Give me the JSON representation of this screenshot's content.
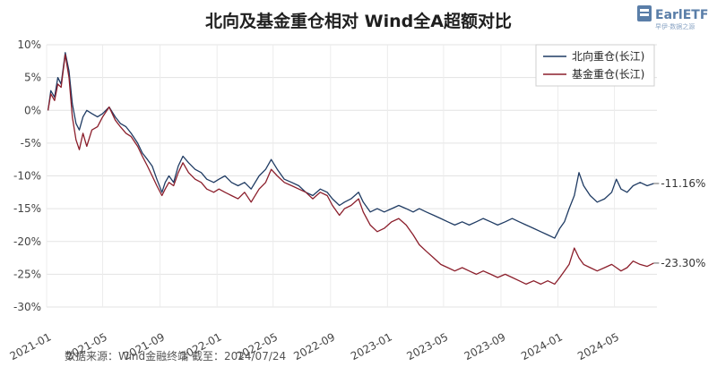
{
  "chart_data": {
    "type": "line",
    "title": "北向及基金重仓相对 Wind全A超额对比",
    "source": "数据来源：Wind金融终端 截至：2024/07/24",
    "xlabel": "",
    "ylabel": "",
    "ylim": [
      -30,
      10
    ],
    "yticks": [
      "10%",
      "5%",
      "0%",
      "-5%",
      "-10%",
      "-15%",
      "-20%",
      "-25%",
      "-30%"
    ],
    "ytick_values": [
      10,
      5,
      0,
      -5,
      -10,
      -15,
      -20,
      -25,
      -30
    ],
    "xticks": [
      "2021-01",
      "2021-05",
      "2021-09",
      "2022-01",
      "2022-05",
      "2022-09",
      "2023-01",
      "2023-05",
      "2023-09",
      "2024-01",
      "2024-05"
    ],
    "grid": true,
    "legend_position": "top-right",
    "series": [
      {
        "name": "北向重仓(长江)",
        "color": "#1f3b63",
        "end_label": "-11.16%",
        "points": [
          [
            "2021-01-04",
            0
          ],
          [
            "2021-01-10",
            3
          ],
          [
            "2021-01-18",
            2
          ],
          [
            "2021-01-25",
            5
          ],
          [
            "2021-02-01",
            4
          ],
          [
            "2021-02-10",
            8.8
          ],
          [
            "2021-02-18",
            6
          ],
          [
            "2021-02-25",
            1
          ],
          [
            "2021-03-05",
            -2
          ],
          [
            "2021-03-12",
            -3
          ],
          [
            "2021-03-20",
            -1
          ],
          [
            "2021-03-28",
            0
          ],
          [
            "2021-04-08",
            -0.5
          ],
          [
            "2021-04-20",
            -1
          ],
          [
            "2021-05-01",
            -0.5
          ],
          [
            "2021-05-15",
            0.5
          ],
          [
            "2021-05-28",
            -1
          ],
          [
            "2021-06-08",
            -2
          ],
          [
            "2021-06-20",
            -2.5
          ],
          [
            "2021-07-01",
            -3.5
          ],
          [
            "2021-07-15",
            -5
          ],
          [
            "2021-07-25",
            -6.5
          ],
          [
            "2021-08-05",
            -7.5
          ],
          [
            "2021-08-15",
            -8.5
          ],
          [
            "2021-08-25",
            -10.5
          ],
          [
            "2021-09-05",
            -12.5
          ],
          [
            "2021-09-12",
            -11
          ],
          [
            "2021-09-20",
            -10
          ],
          [
            "2021-09-30",
            -11
          ],
          [
            "2021-10-10",
            -8.5
          ],
          [
            "2021-10-20",
            -7
          ],
          [
            "2021-11-01",
            -8
          ],
          [
            "2021-11-15",
            -9
          ],
          [
            "2021-11-28",
            -9.5
          ],
          [
            "2021-12-10",
            -10.5
          ],
          [
            "2021-12-25",
            -11
          ],
          [
            "2022-01-05",
            -10.5
          ],
          [
            "2022-01-18",
            -10
          ],
          [
            "2022-02-01",
            -11
          ],
          [
            "2022-02-15",
            -11.5
          ],
          [
            "2022-03-01",
            -11
          ],
          [
            "2022-03-15",
            -12
          ],
          [
            "2022-04-01",
            -10
          ],
          [
            "2022-04-15",
            -9
          ],
          [
            "2022-04-27",
            -7.5
          ],
          [
            "2022-05-10",
            -9
          ],
          [
            "2022-05-25",
            -10.5
          ],
          [
            "2022-06-10",
            -11
          ],
          [
            "2022-06-25",
            -11.5
          ],
          [
            "2022-07-10",
            -12.5
          ],
          [
            "2022-07-25",
            -13
          ],
          [
            "2022-08-10",
            -12
          ],
          [
            "2022-08-25",
            -12.5
          ],
          [
            "2022-09-05",
            -13.5
          ],
          [
            "2022-09-20",
            -14.5
          ],
          [
            "2022-10-01",
            -14
          ],
          [
            "2022-10-15",
            -13.5
          ],
          [
            "2022-10-31",
            -12.5
          ],
          [
            "2022-11-10",
            -14
          ],
          [
            "2022-11-25",
            -15.5
          ],
          [
            "2022-12-10",
            -15
          ],
          [
            "2022-12-25",
            -15.5
          ],
          [
            "2023-01-10",
            -15
          ],
          [
            "2023-01-25",
            -14.5
          ],
          [
            "2023-02-10",
            -15
          ],
          [
            "2023-02-25",
            -15.5
          ],
          [
            "2023-03-10",
            -15
          ],
          [
            "2023-03-25",
            -15.5
          ],
          [
            "2023-04-10",
            -16
          ],
          [
            "2023-04-25",
            -16.5
          ],
          [
            "2023-05-10",
            -17
          ],
          [
            "2023-05-25",
            -17.5
          ],
          [
            "2023-06-10",
            -17
          ],
          [
            "2023-06-25",
            -17.5
          ],
          [
            "2023-07-10",
            -17
          ],
          [
            "2023-07-25",
            -16.5
          ],
          [
            "2023-08-10",
            -17
          ],
          [
            "2023-08-25",
            -17.5
          ],
          [
            "2023-09-10",
            -17
          ],
          [
            "2023-09-25",
            -16.5
          ],
          [
            "2023-10-10",
            -17
          ],
          [
            "2023-10-25",
            -17.5
          ],
          [
            "2023-11-10",
            -18
          ],
          [
            "2023-11-25",
            -18.5
          ],
          [
            "2023-12-10",
            -19
          ],
          [
            "2023-12-25",
            -19.5
          ],
          [
            "2024-01-05",
            -18
          ],
          [
            "2024-01-15",
            -17
          ],
          [
            "2024-01-25",
            -15
          ],
          [
            "2024-02-05",
            -13
          ],
          [
            "2024-02-15",
            -9.5
          ],
          [
            "2024-02-25",
            -11.5
          ],
          [
            "2024-03-10",
            -13
          ],
          [
            "2024-03-25",
            -14
          ],
          [
            "2024-04-10",
            -13.5
          ],
          [
            "2024-04-25",
            -12.5
          ],
          [
            "2024-05-05",
            -10.5
          ],
          [
            "2024-05-15",
            -12
          ],
          [
            "2024-05-28",
            -12.5
          ],
          [
            "2024-06-10",
            -11.5
          ],
          [
            "2024-06-25",
            -11
          ],
          [
            "2024-07-10",
            -11.5
          ],
          [
            "2024-07-24",
            -11.16
          ]
        ]
      },
      {
        "name": "基金重仓(长江)",
        "color": "#8b1e2b",
        "end_label": "-23.30%",
        "points": [
          [
            "2021-01-04",
            0
          ],
          [
            "2021-01-10",
            2.5
          ],
          [
            "2021-01-18",
            1.5
          ],
          [
            "2021-01-25",
            4
          ],
          [
            "2021-02-01",
            3.5
          ],
          [
            "2021-02-10",
            8.5
          ],
          [
            "2021-02-18",
            5
          ],
          [
            "2021-02-25",
            -1
          ],
          [
            "2021-03-05",
            -4.5
          ],
          [
            "2021-03-12",
            -6
          ],
          [
            "2021-03-20",
            -3.5
          ],
          [
            "2021-03-28",
            -5.5
          ],
          [
            "2021-04-08",
            -3
          ],
          [
            "2021-04-20",
            -2.5
          ],
          [
            "2021-05-01",
            -1
          ],
          [
            "2021-05-15",
            0.5
          ],
          [
            "2021-05-28",
            -1.5
          ],
          [
            "2021-06-08",
            -2.5
          ],
          [
            "2021-06-20",
            -3.5
          ],
          [
            "2021-07-01",
            -4
          ],
          [
            "2021-07-15",
            -5.5
          ],
          [
            "2021-07-25",
            -7
          ],
          [
            "2021-08-05",
            -8.5
          ],
          [
            "2021-08-15",
            -10
          ],
          [
            "2021-08-25",
            -11.5
          ],
          [
            "2021-09-05",
            -13
          ],
          [
            "2021-09-12",
            -12
          ],
          [
            "2021-09-20",
            -11
          ],
          [
            "2021-09-30",
            -11.5
          ],
          [
            "2021-10-10",
            -9.5
          ],
          [
            "2021-10-20",
            -8
          ],
          [
            "2021-11-01",
            -9.5
          ],
          [
            "2021-11-15",
            -10.5
          ],
          [
            "2021-11-28",
            -11
          ],
          [
            "2021-12-10",
            -12
          ],
          [
            "2021-12-25",
            -12.5
          ],
          [
            "2022-01-05",
            -12
          ],
          [
            "2022-01-18",
            -12.5
          ],
          [
            "2022-02-01",
            -13
          ],
          [
            "2022-02-15",
            -13.5
          ],
          [
            "2022-03-01",
            -12.5
          ],
          [
            "2022-03-15",
            -14
          ],
          [
            "2022-04-01",
            -12
          ],
          [
            "2022-04-15",
            -11
          ],
          [
            "2022-04-27",
            -9
          ],
          [
            "2022-05-10",
            -10
          ],
          [
            "2022-05-25",
            -11
          ],
          [
            "2022-06-10",
            -11.5
          ],
          [
            "2022-06-25",
            -12
          ],
          [
            "2022-07-10",
            -12.5
          ],
          [
            "2022-07-25",
            -13.5
          ],
          [
            "2022-08-10",
            -12.5
          ],
          [
            "2022-08-25",
            -13
          ],
          [
            "2022-09-05",
            -14.5
          ],
          [
            "2022-09-20",
            -16
          ],
          [
            "2022-10-01",
            -15
          ],
          [
            "2022-10-15",
            -14.5
          ],
          [
            "2022-10-31",
            -13.5
          ],
          [
            "2022-11-10",
            -15.5
          ],
          [
            "2022-11-25",
            -17.5
          ],
          [
            "2022-12-10",
            -18.5
          ],
          [
            "2022-12-25",
            -18
          ],
          [
            "2023-01-10",
            -17
          ],
          [
            "2023-01-25",
            -16.5
          ],
          [
            "2023-02-10",
            -17.5
          ],
          [
            "2023-02-25",
            -19
          ],
          [
            "2023-03-10",
            -20.5
          ],
          [
            "2023-03-25",
            -21.5
          ],
          [
            "2023-04-10",
            -22.5
          ],
          [
            "2023-04-25",
            -23.5
          ],
          [
            "2023-05-10",
            -24
          ],
          [
            "2023-05-25",
            -24.5
          ],
          [
            "2023-06-10",
            -24
          ],
          [
            "2023-06-25",
            -24.5
          ],
          [
            "2023-07-10",
            -25
          ],
          [
            "2023-07-25",
            -24.5
          ],
          [
            "2023-08-10",
            -25
          ],
          [
            "2023-08-25",
            -25.5
          ],
          [
            "2023-09-10",
            -25
          ],
          [
            "2023-09-25",
            -25.5
          ],
          [
            "2023-10-10",
            -26
          ],
          [
            "2023-10-25",
            -26.5
          ],
          [
            "2023-11-10",
            -26
          ],
          [
            "2023-11-25",
            -26.5
          ],
          [
            "2023-12-10",
            -26
          ],
          [
            "2023-12-25",
            -26.5
          ],
          [
            "2024-01-05",
            -25.5
          ],
          [
            "2024-01-15",
            -24.5
          ],
          [
            "2024-01-25",
            -23.5
          ],
          [
            "2024-02-05",
            -21
          ],
          [
            "2024-02-15",
            -22.5
          ],
          [
            "2024-02-25",
            -23.5
          ],
          [
            "2024-03-10",
            -24
          ],
          [
            "2024-03-25",
            -24.5
          ],
          [
            "2024-04-10",
            -24
          ],
          [
            "2024-04-25",
            -23.5
          ],
          [
            "2024-05-05",
            -24
          ],
          [
            "2024-05-15",
            -24.5
          ],
          [
            "2024-05-28",
            -24
          ],
          [
            "2024-06-10",
            -23
          ],
          [
            "2024-06-25",
            -23.5
          ],
          [
            "2024-07-10",
            -23.8
          ],
          [
            "2024-07-24",
            -23.3
          ]
        ]
      }
    ]
  },
  "branding": {
    "logo_text": "EarlETF",
    "logo_subtext": "早伊·数据之源",
    "logo_color": "#5a7ea8"
  }
}
